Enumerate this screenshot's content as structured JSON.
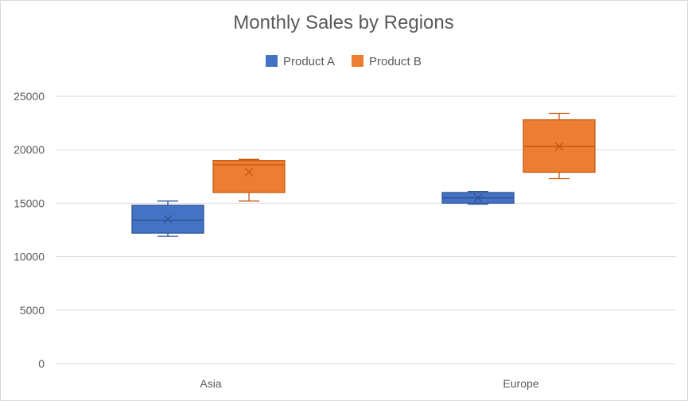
{
  "chart_data": {
    "type": "boxplot",
    "title": "Monthly Sales by Regions",
    "categories": [
      "Asia",
      "Europe"
    ],
    "ylim": [
      0,
      25000
    ],
    "yticks": [
      0,
      5000,
      10000,
      15000,
      20000,
      25000
    ],
    "grid": true,
    "legend_position": "top-center",
    "series": [
      {
        "name": "Product A",
        "color": "#4472C4",
        "boxes": [
          {
            "min": 11900,
            "q1": 12200,
            "median": 13400,
            "q3": 14800,
            "max": 15200,
            "mean": 13500
          },
          {
            "min": 14900,
            "q1": 15000,
            "median": 15500,
            "q3": 16000,
            "max": 16100,
            "mean": 15500
          }
        ]
      },
      {
        "name": "Product B",
        "color": "#ED7D31",
        "boxes": [
          {
            "min": 15200,
            "q1": 16000,
            "median": 18600,
            "q3": 19000,
            "max": 19100,
            "mean": 17900
          },
          {
            "min": 17300,
            "q1": 17900,
            "median": 20300,
            "q3": 22800,
            "max": 23400,
            "mean": 20300
          }
        ]
      }
    ]
  }
}
